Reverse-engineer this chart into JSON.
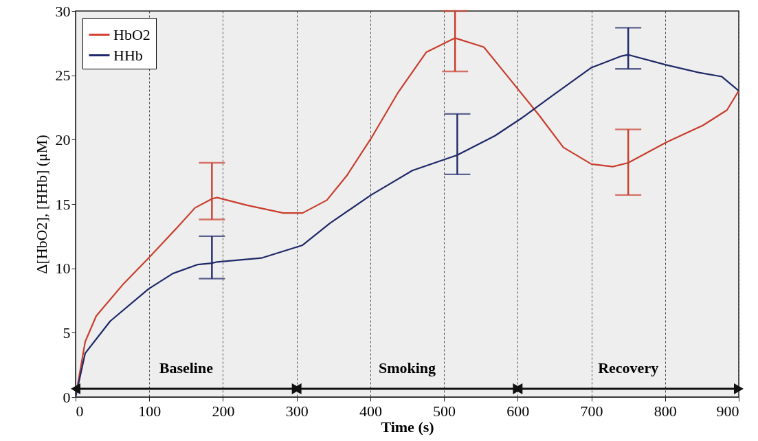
{
  "chart_data": {
    "type": "line",
    "xlabel": "Time (s)",
    "ylabel": "Δ[HbO2], [HHb] (μM)",
    "xlim": [
      0,
      900
    ],
    "xticks": [
      0,
      100,
      200,
      300,
      400,
      500,
      600,
      700,
      800,
      900
    ],
    "ylim": [
      0,
      30
    ],
    "yticks": [
      0,
      5,
      10,
      15,
      20,
      25,
      30
    ],
    "grid": "x",
    "legend": "top left",
    "line_style": "solid",
    "marker": "none",
    "bands": [
      {
        "axis": "x",
        "from": 0,
        "to": 300,
        "label": "Baseline",
        "color": "#111111"
      },
      {
        "axis": "x",
        "from": 300,
        "to": 600,
        "label": "Smoking",
        "color": "#111111"
      },
      {
        "axis": "x",
        "from": 600,
        "to": 900,
        "label": "Recovery",
        "color": "#111111"
      }
    ],
    "series": [
      {
        "name": "HbO2",
        "color": "#d8412f",
        "x": [
          0,
          13,
          28,
          65,
          99,
          140,
          162,
          185,
          192,
          233,
          282,
          308,
          341,
          368,
          401,
          438,
          476,
          515,
          554,
          588,
          629,
          662,
          700,
          729,
          750,
          802,
          851,
          884,
          900
        ],
        "values": [
          0,
          4.3,
          6.3,
          8.8,
          10.8,
          13.3,
          14.7,
          15.4,
          15.5,
          14.9,
          14.3,
          14.3,
          15.3,
          17.2,
          20.1,
          23.7,
          26.8,
          27.9,
          27.2,
          24.8,
          21.9,
          19.4,
          18.1,
          17.9,
          18.2,
          19.8,
          21.1,
          22.3,
          23.8
        ],
        "errors": [
          null,
          null,
          null,
          null,
          null,
          null,
          null,
          [
            13.8,
            18.2
          ],
          null,
          null,
          null,
          null,
          null,
          null,
          null,
          null,
          null,
          [
            25.3,
            30
          ],
          null,
          null,
          null,
          null,
          null,
          null,
          [
            15.7,
            20.8
          ],
          null,
          null,
          null,
          null
        ]
      },
      {
        "name": "HHb",
        "color": "#1f2a6e",
        "x": [
          0,
          13,
          47,
          99,
          132,
          166,
          185,
          192,
          252,
          308,
          345,
          401,
          457,
          518,
          569,
          606,
          644,
          700,
          741,
          750,
          802,
          847,
          877,
          900
        ],
        "values": [
          0,
          3.4,
          5.9,
          8.4,
          9.6,
          10.3,
          10.4,
          10.5,
          10.8,
          11.8,
          13.5,
          15.7,
          17.6,
          18.8,
          20.3,
          21.7,
          23.3,
          25.6,
          26.5,
          26.6,
          25.8,
          25.2,
          24.9,
          23.8
        ],
        "errors": [
          null,
          null,
          null,
          null,
          null,
          null,
          [
            9.2,
            12.5
          ],
          null,
          null,
          null,
          null,
          null,
          null,
          [
            17.3,
            22.0
          ],
          null,
          null,
          null,
          null,
          null,
          [
            25.5,
            28.7
          ],
          null,
          null,
          null,
          null
        ]
      }
    ]
  }
}
